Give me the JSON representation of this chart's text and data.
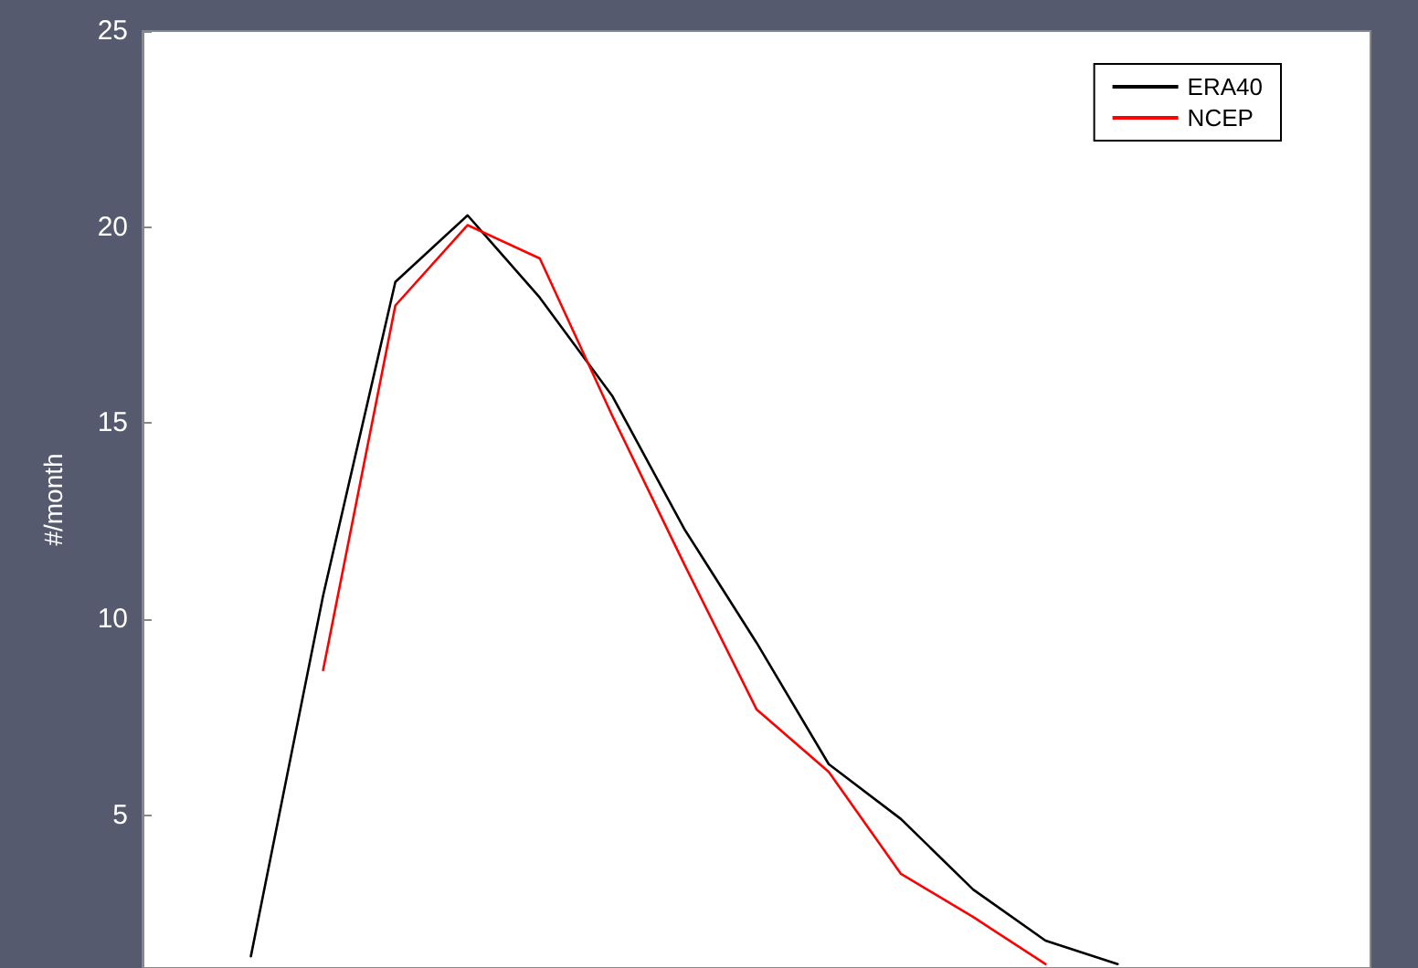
{
  "chart_data": {
    "type": "line",
    "ylabel": "#/month",
    "categories": [
      null,
      null,
      null,
      null,
      null,
      null,
      null,
      null,
      null,
      null,
      null,
      null,
      null,
      null,
      null,
      null,
      null
    ],
    "series": [
      {
        "name": "ERA40",
        "color": "#000000",
        "values": [
          null,
          1.4,
          10.6,
          18.6,
          20.3,
          18.2,
          15.7,
          12.3,
          9.4,
          6.3,
          4.9,
          3.1,
          1.8,
          1.2,
          null,
          null,
          null
        ]
      },
      {
        "name": "NCEP",
        "color": "#ff0000",
        "values": [
          null,
          null,
          8.7,
          18.0,
          20.05,
          19.2,
          15.2,
          11.4,
          7.7,
          6.1,
          3.5,
          2.4,
          1.2,
          null,
          null,
          null,
          null
        ]
      }
    ],
    "ylim": [
      1.1,
      25
    ],
    "yticks": [
      5,
      10,
      15,
      20,
      25
    ],
    "tick_labels": "y",
    "grid": false,
    "legend": "top right",
    "marker": "none",
    "line_style": "solid"
  }
}
